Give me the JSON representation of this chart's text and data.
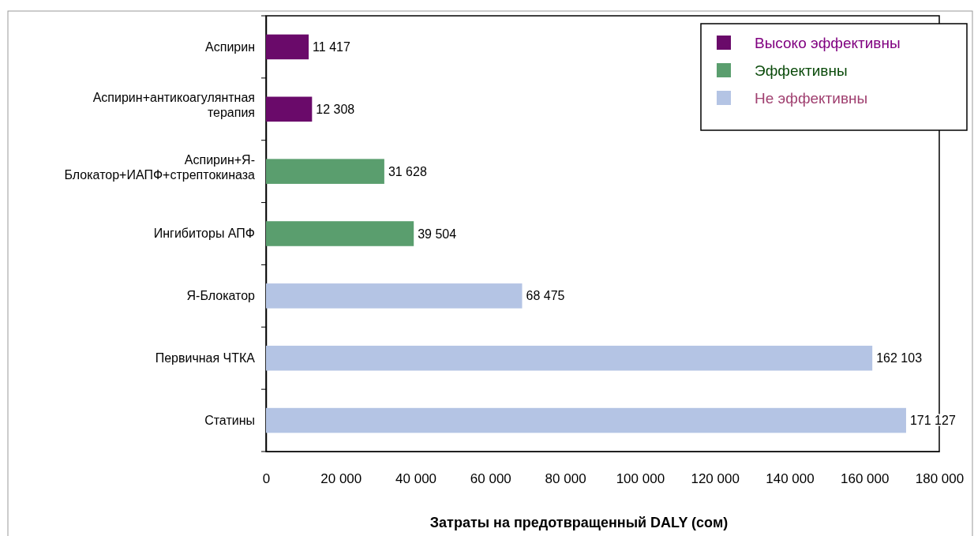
{
  "chart_data": {
    "type": "bar",
    "orientation": "horizontal",
    "xlabel": "Затраты на предотвращенный DALY (сом)",
    "categories": [
      "Аспирин",
      "Аспирин+антикоагулянтная терапия",
      "Аспирин+Я-Блокатор+ИАПФ+стрептокиназа",
      "Ингибиторы АПФ",
      "Я-Блокатор",
      "Первичная ЧТКА",
      "Статины"
    ],
    "series": [
      {
        "name": "Высоко эффективны",
        "color": "#6a0a6a",
        "values": [
          11417,
          12308,
          null,
          null,
          null,
          null,
          null
        ]
      },
      {
        "name": "Эффективны",
        "color": "#5a9e6e",
        "values": [
          null,
          null,
          31628,
          39504,
          null,
          null,
          null
        ]
      },
      {
        "name": "Не эффективны",
        "color": "#b4c4e4",
        "values": [
          null,
          null,
          null,
          null,
          68475,
          162103,
          171127
        ]
      }
    ],
    "xlim": [
      0,
      180000
    ],
    "xticks": [
      0,
      {
        "value": 20000,
        "label": "20 000"
      },
      {
        "value": 40000,
        "label": "40 000"
      },
      {
        "value": 60000,
        "label": "60 000"
      },
      {
        "value": 80000,
        "label": "80 000"
      },
      {
        "value": 100000,
        "label": "100 000"
      },
      {
        "value": 120000,
        "label": "120 000"
      },
      {
        "value": 140000,
        "label": "140 000"
      },
      {
        "value": 160000,
        "label": "160 000"
      },
      {
        "value": 180000,
        "label": "180 000"
      }
    ],
    "data_labels": true,
    "legend": "top right",
    "grid": false
  }
}
